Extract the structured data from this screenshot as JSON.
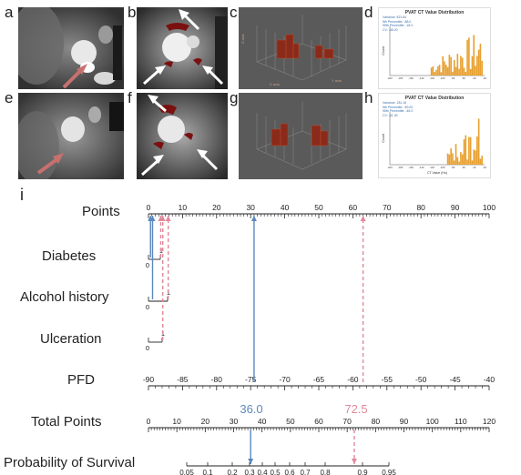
{
  "panels": {
    "a": "a",
    "b": "b",
    "c": "c",
    "d": "d",
    "e": "e",
    "f": "f",
    "g": "g",
    "h": "h",
    "i": "i"
  },
  "histograms": {
    "top": {
      "title": "PVAT CT Value Distribution",
      "stats": [
        "Variance: 821.84",
        "5th Percentile: -88.0",
        "95th Percentile: -18.0",
        "CV: -45.20"
      ],
      "ylabel": "Count",
      "xlabel": "",
      "xticks": [
        "-200",
        "-180",
        "-160",
        "-140",
        "-120",
        "-100",
        "-80",
        "-60",
        "-40",
        "-20"
      ]
    },
    "bottom": {
      "title": "PVAT CT Value Distribution",
      "stats": [
        "Variance: 181.16",
        "5th Percentile: -89.00",
        "95th Percentile: -45.0",
        "CV: -51.30"
      ],
      "ylabel": "Count",
      "xlabel": "CT Value (Hu)",
      "xticks": [
        "-200",
        "-180",
        "-160",
        "-140",
        "-120",
        "-100",
        "-80",
        "-60",
        "-40",
        "-20"
      ]
    }
  },
  "render3d": {
    "axis_z": "Z axis",
    "axis_x": "X axis",
    "axis_y": "Y axis"
  },
  "nomogram": {
    "rows": {
      "points": "Points",
      "diabetes": "Diabetes",
      "alcohol": "Alcohol history",
      "ulceration": "Ulceration",
      "pfd": "PFD",
      "total": "Total Points",
      "survival": "Probability of Survival"
    },
    "points_ticks": [
      "0",
      "10",
      "20",
      "30",
      "40",
      "50",
      "60",
      "70",
      "80",
      "90",
      "100"
    ],
    "pfd_ticks": [
      "-90",
      "-85",
      "-80",
      "-75",
      "-70",
      "-65",
      "-60",
      "-55",
      "-50",
      "-45",
      "-40"
    ],
    "total_ticks": [
      "0",
      "10",
      "20",
      "30",
      "40",
      "50",
      "60",
      "70",
      "80",
      "90",
      "100",
      "110",
      "120"
    ],
    "survival_ticks": [
      "0.05",
      "0.1",
      "0.2",
      "0.3",
      "0.4",
      "0.5",
      "0.6",
      "0.7",
      "0.8",
      "0.9",
      "0.95"
    ],
    "diabetes_levels": [
      "0",
      "1"
    ],
    "alcohol_levels": [
      "0",
      "1"
    ],
    "ulceration_levels": [
      "0",
      "1"
    ],
    "score_blue": "36.0",
    "score_pink": "72.5",
    "colors": {
      "blue": "#5b88bd",
      "pink": "#e0899a"
    }
  }
}
